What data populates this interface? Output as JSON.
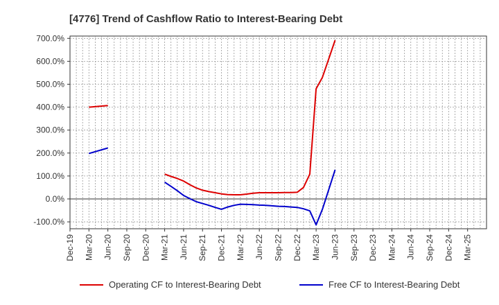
{
  "chart_data": {
    "type": "line",
    "title": "[4776]  Trend of Cashflow Ratio to Interest-Bearing Debt",
    "xlabel": "",
    "ylabel": "",
    "ylim": [
      -130,
      710
    ],
    "yticks": [
      -100,
      0,
      100,
      200,
      300,
      400,
      500,
      600,
      700
    ],
    "ytick_labels": [
      "-100.0%",
      "0.0%",
      "100.0%",
      "200.0%",
      "300.0%",
      "400.0%",
      "500.0%",
      "600.0%",
      "700.0%"
    ],
    "x_range": [
      0,
      66
    ],
    "categories": [
      "Dec-19",
      "Mar-20",
      "Jun-20",
      "Sep-20",
      "Dec-20",
      "Mar-21",
      "Jun-21",
      "Sep-21",
      "Dec-21",
      "Mar-22",
      "Jun-22",
      "Sep-22",
      "Dec-22",
      "Mar-23",
      "Jun-23",
      "Sep-23",
      "Dec-23",
      "Mar-24",
      "Jun-24",
      "Sep-24",
      "Dec-24",
      "Mar-25"
    ],
    "category_month_index": [
      0,
      3,
      6,
      9,
      12,
      15,
      18,
      21,
      24,
      27,
      30,
      33,
      36,
      39,
      42,
      45,
      48,
      51,
      54,
      57,
      60,
      63
    ],
    "grid": true,
    "legend_position": "bottom",
    "series": [
      {
        "name": "Operating CF to Interest-Bearing Debt",
        "color": "#dd0000",
        "segments": [
          [
            [
              3,
              400
            ],
            [
              6,
              407
            ]
          ],
          [
            [
              15,
              108
            ],
            [
              16,
              98
            ],
            [
              17,
              89
            ],
            [
              18,
              78
            ],
            [
              19,
              62
            ],
            [
              20,
              48
            ],
            [
              21,
              38
            ],
            [
              22,
              32
            ],
            [
              23,
              27
            ],
            [
              24,
              22
            ],
            [
              25,
              19
            ],
            [
              26,
              18
            ],
            [
              27,
              18
            ],
            [
              28,
              21
            ],
            [
              29,
              25
            ],
            [
              30,
              27
            ],
            [
              31,
              27
            ],
            [
              32,
              27
            ],
            [
              33,
              27
            ],
            [
              34,
              28
            ],
            [
              35,
              28
            ],
            [
              36,
              29
            ],
            [
              37,
              50
            ],
            [
              38,
              108
            ],
            [
              39,
              480
            ],
            [
              40,
              530
            ],
            [
              41,
              610
            ],
            [
              42,
              692
            ]
          ]
        ]
      },
      {
        "name": "Free CF to Interest-Bearing Debt",
        "color": "#0000cc",
        "segments": [
          [
            [
              3,
              198
            ],
            [
              6,
              222
            ]
          ],
          [
            [
              15,
              73
            ],
            [
              16,
              55
            ],
            [
              17,
              36
            ],
            [
              18,
              15
            ],
            [
              19,
              1
            ],
            [
              20,
              -12
            ],
            [
              21,
              -20
            ],
            [
              22,
              -28
            ],
            [
              23,
              -37
            ],
            [
              24,
              -45
            ],
            [
              25,
              -35
            ],
            [
              26,
              -28
            ],
            [
              27,
              -23
            ],
            [
              28,
              -24
            ],
            [
              29,
              -25
            ],
            [
              30,
              -27
            ],
            [
              31,
              -28
            ],
            [
              32,
              -30
            ],
            [
              33,
              -32
            ],
            [
              34,
              -33
            ],
            [
              35,
              -35
            ],
            [
              36,
              -37
            ],
            [
              37,
              -43
            ],
            [
              38,
              -52
            ],
            [
              39,
              -113
            ],
            [
              40,
              -45
            ],
            [
              41,
              40
            ],
            [
              42,
              127
            ]
          ]
        ]
      }
    ]
  }
}
